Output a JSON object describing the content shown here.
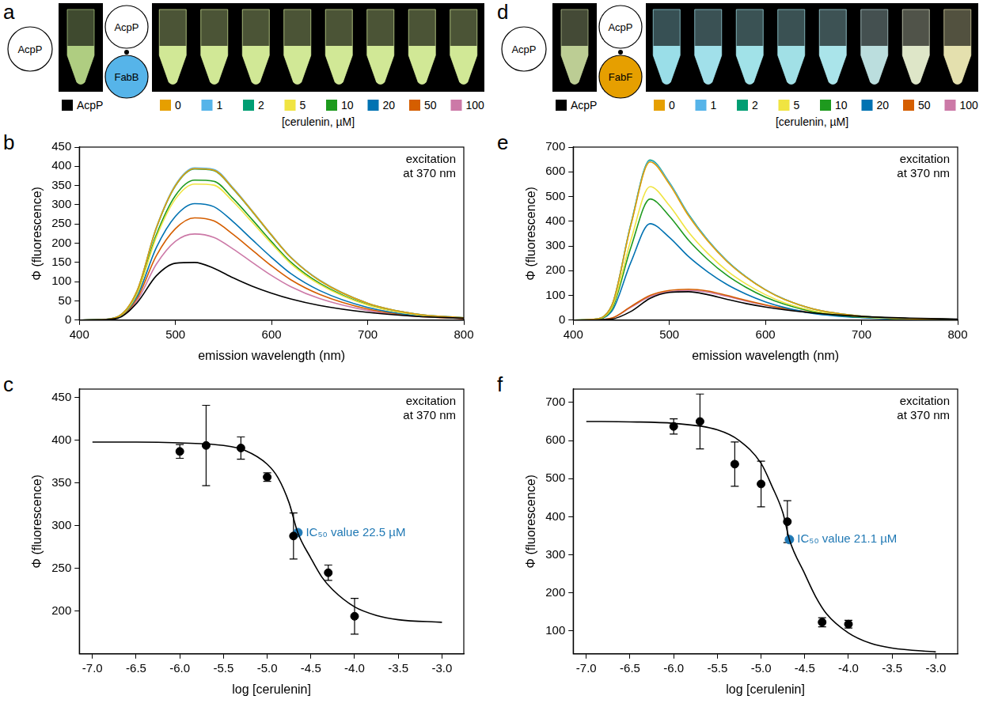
{
  "photos": [
    {
      "panel": "a",
      "single": {
        "label": "AcpP"
      },
      "complex": [
        {
          "label": "AcpP"
        },
        {
          "label": "FabB",
          "color": "#56b4e9"
        }
      ],
      "legend_title": "[cerulenin, µM]"
    },
    {
      "panel": "d",
      "single": {
        "label": "AcpP"
      },
      "complex": [
        {
          "label": "AcpP"
        },
        {
          "label": "FabF",
          "color": "#e69f00"
        }
      ],
      "legend_title": "[cerulenin, µM]"
    }
  ],
  "chart_data": [
    {
      "panel": "b",
      "type": "line",
      "annotation": [
        "excitation",
        "at 370 nm"
      ],
      "x_label": "emission wavelength (nm)",
      "y_label": "Φ (fluorescence)",
      "x": [
        400,
        420,
        440,
        460,
        480,
        500,
        520,
        540,
        560,
        580,
        600,
        620,
        650,
        700,
        750,
        800
      ],
      "series": [
        {
          "name": "AcpP",
          "color": "#000000",
          "values": [
            0,
            1,
            5,
            45,
            115,
            148,
            150,
            135,
            110,
            88,
            70,
            55,
            38,
            20,
            10,
            5
          ]
        },
        {
          "name": "0",
          "color": "#e69f00",
          "values": [
            0,
            1,
            9,
            76,
            239,
            350,
            394,
            390,
            342,
            283,
            221,
            163,
            103,
            44,
            16,
            6
          ]
        },
        {
          "name": "1",
          "color": "#56b4e9",
          "values": [
            0,
            1,
            9,
            76,
            240,
            352,
            396,
            392,
            344,
            284,
            222,
            164,
            104,
            44,
            16,
            6
          ]
        },
        {
          "name": "2",
          "color": "#009e73",
          "values": [
            0,
            1,
            9,
            75,
            238,
            349,
            393,
            389,
            341,
            282,
            220,
            163,
            103,
            44,
            16,
            6
          ]
        },
        {
          "name": "5",
          "color": "#f0e442",
          "values": [
            0,
            1,
            8,
            68,
            215,
            315,
            354,
            351,
            308,
            254,
            199,
            147,
            93,
            39,
            14,
            5
          ]
        },
        {
          "name": "10",
          "color": "#1e9a1e",
          "values": [
            0,
            1,
            8,
            70,
            221,
            324,
            364,
            361,
            316,
            261,
            204,
            151,
            96,
            40,
            15,
            6
          ]
        },
        {
          "name": "20",
          "color": "#0072b2",
          "values": [
            0,
            1,
            8,
            62,
            188,
            270,
            303,
            295,
            256,
            209,
            163,
            121,
            77,
            33,
            12,
            5
          ]
        },
        {
          "name": "50",
          "color": "#d55e00",
          "values": [
            0,
            1,
            7,
            56,
            167,
            238,
            266,
            258,
            223,
            182,
            141,
            105,
            67,
            29,
            11,
            4
          ]
        },
        {
          "name": "100",
          "color": "#cc79a7",
          "values": [
            0,
            1,
            7,
            50,
            145,
            205,
            224,
            215,
            185,
            150,
            116,
            87,
            56,
            25,
            10,
            4
          ]
        }
      ],
      "xlim": [
        400,
        800
      ],
      "xticks": [
        400,
        500,
        600,
        700,
        800
      ],
      "ylim": [
        0,
        450
      ],
      "yticks": [
        0,
        50,
        100,
        150,
        200,
        250,
        300,
        350,
        400,
        450
      ],
      "grid": false,
      "legend": "top"
    },
    {
      "panel": "c",
      "type": "scatter",
      "annotation": [
        "excitation",
        "at 370 nm"
      ],
      "x_label": "log [cerulenin]",
      "y_label": "Φ (fluorescence)",
      "color": "#000000",
      "x": [
        -6,
        -5.699,
        -5.301,
        -5,
        -4.699,
        -4.301,
        -4
      ],
      "values": [
        387,
        394,
        391,
        357,
        288,
        245,
        194
      ],
      "errors": [
        8,
        47,
        13,
        5,
        27,
        9,
        21
      ],
      "fit": {
        "x": [
          -7,
          -6.5,
          -6,
          -5.5,
          -5.25,
          -5,
          -4.875,
          -4.75,
          -4.65,
          -4.5,
          -4.375,
          -4.25,
          -4,
          -3.75,
          -3.5,
          -3
        ],
        "values": [
          398,
          398,
          397,
          394,
          388,
          372,
          356,
          327,
          292,
          262,
          240,
          225,
          205,
          195,
          190,
          187
        ]
      },
      "ic50": {
        "x": -4.648,
        "value": 292,
        "label": "IC₅₀ value 22.5 µM",
        "color": "#1f78b4"
      },
      "xlim": [
        -7.15,
        -2.75
      ],
      "xticks": [
        {
          "value": -7,
          "label": "-7.0"
        },
        {
          "value": -6.5,
          "label": "-6.5"
        },
        {
          "value": -6,
          "label": "-6.0"
        },
        {
          "value": -5.5,
          "label": "-5.5"
        },
        {
          "value": -5,
          "label": "-5.0"
        },
        {
          "value": -4.5,
          "label": "-4.5"
        },
        {
          "value": -4,
          "label": "-4.0"
        },
        {
          "value": -3.5,
          "label": "-3.5"
        },
        {
          "value": -3,
          "label": "-3.0"
        }
      ],
      "ylim": [
        150,
        460
      ],
      "yticks": [
        200,
        250,
        300,
        350,
        400,
        450
      ],
      "grid": false
    },
    {
      "panel": "e",
      "type": "line",
      "annotation": [
        "excitation",
        "at 370 nm"
      ],
      "x_label": "emission wavelength (nm)",
      "y_label": "Φ (fluorescence)",
      "x": [
        400,
        420,
        440,
        460,
        480,
        500,
        520,
        540,
        560,
        580,
        600,
        620,
        650,
        700,
        750,
        800
      ],
      "series": [
        {
          "name": "AcpP",
          "color": "#000000",
          "values": [
            0,
            1,
            4,
            35,
            88,
            112,
            115,
            103,
            84,
            67,
            53,
            42,
            29,
            15,
            8,
            4
          ]
        },
        {
          "name": "0",
          "color": "#e69f00",
          "values": [
            0,
            3,
            58,
            384,
            640,
            550,
            422,
            320,
            237,
            173,
            122,
            83,
            45,
            16,
            6,
            3
          ]
        },
        {
          "name": "1",
          "color": "#56b4e9",
          "values": [
            0,
            3,
            58,
            387,
            645,
            555,
            426,
            323,
            239,
            174,
            123,
            84,
            45,
            16,
            6,
            3
          ]
        },
        {
          "name": "2",
          "color": "#009e73",
          "values": [
            0,
            3,
            58,
            389,
            648,
            557,
            428,
            324,
            240,
            175,
            123,
            84,
            45,
            16,
            6,
            3
          ]
        },
        {
          "name": "5",
          "color": "#f0e442",
          "values": [
            0,
            3,
            49,
            324,
            540,
            464,
            356,
            270,
            200,
            146,
            103,
            70,
            38,
            14,
            5,
            3
          ]
        },
        {
          "name": "10",
          "color": "#1e9a1e",
          "values": [
            0,
            2,
            44,
            294,
            490,
            421,
            323,
            245,
            181,
            132,
            93,
            64,
            34,
            12,
            5,
            2
          ]
        },
        {
          "name": "20",
          "color": "#0072b2",
          "values": [
            0,
            2,
            35,
            234,
            390,
            335,
            257,
            195,
            144,
            105,
            74,
            51,
            27,
            10,
            4,
            2
          ]
        },
        {
          "name": "50",
          "color": "#d55e00",
          "values": [
            0,
            1,
            8,
            55,
            100,
            120,
            125,
            118,
            100,
            80,
            62,
            47,
            30,
            14,
            6,
            3
          ]
        },
        {
          "name": "100",
          "color": "#cc79a7",
          "values": [
            0,
            1,
            8,
            52,
            95,
            115,
            120,
            113,
            96,
            77,
            60,
            45,
            29,
            13,
            6,
            3
          ]
        }
      ],
      "xlim": [
        400,
        800
      ],
      "xticks": [
        400,
        500,
        600,
        700,
        800
      ],
      "ylim": [
        0,
        700
      ],
      "yticks": [
        0,
        100,
        200,
        300,
        400,
        500,
        600,
        700
      ],
      "grid": false,
      "legend": "top"
    },
    {
      "panel": "f",
      "type": "scatter",
      "annotation": [
        "excitation",
        "at 370 nm"
      ],
      "x_label": "log [cerulenin]",
      "y_label": "Φ (fluorescence)",
      "color": "#000000",
      "x": [
        -6,
        -5.699,
        -5.301,
        -5,
        -4.699,
        -4.301,
        -4
      ],
      "values": [
        637,
        650,
        538,
        486,
        387,
        123,
        118
      ],
      "errors": [
        20,
        72,
        58,
        60,
        55,
        12,
        10
      ],
      "fit": {
        "x": [
          -7,
          -6.5,
          -6,
          -5.5,
          -5.25,
          -5,
          -4.875,
          -4.75,
          -4.676,
          -4.5,
          -4.375,
          -4.25,
          -4,
          -3.75,
          -3.5,
          -3
        ],
        "values": [
          650,
          649,
          645,
          628,
          600,
          540,
          480,
          410,
          340,
          250,
          190,
          145,
          95,
          68,
          55,
          45
        ]
      },
      "ic50": {
        "x": -4.676,
        "value": 340,
        "label": "IC₅₀ value 21.1 µM",
        "color": "#1f78b4"
      },
      "xlim": [
        -7.15,
        -2.75
      ],
      "xticks": [
        {
          "value": -7,
          "label": "-7.0"
        },
        {
          "value": -6.5,
          "label": "-6.5"
        },
        {
          "value": -6,
          "label": "-6.0"
        },
        {
          "value": -5.5,
          "label": "-5.5"
        },
        {
          "value": -5,
          "label": "-5.0"
        },
        {
          "value": -4.5,
          "label": "-4.5"
        },
        {
          "value": -4,
          "label": "-4.0"
        },
        {
          "value": -3.5,
          "label": "-3.5"
        },
        {
          "value": -3,
          "label": "-3.0"
        }
      ],
      "ylim": [
        40,
        735
      ],
      "yticks": [
        100,
        200,
        300,
        400,
        500,
        600,
        700
      ],
      "grid": false
    }
  ]
}
